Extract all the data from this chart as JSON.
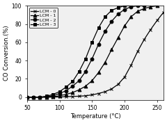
{
  "title": "",
  "xlabel": "Temperature (°C)",
  "ylabel": "CO Conversion.(%)",
  "xlim": [
    50,
    260
  ],
  "ylim": [
    -3,
    100
  ],
  "yticks": [
    0,
    20,
    40,
    60,
    80,
    100
  ],
  "xticks": [
    50,
    100,
    150,
    200,
    250
  ],
  "series": [
    {
      "label": "LCM - 0",
      "marker": "x",
      "color": "black",
      "x": [
        50,
        60,
        70,
        80,
        90,
        100,
        110,
        120,
        130,
        140,
        150,
        160,
        170,
        180,
        190,
        200,
        210,
        220,
        230,
        240,
        250,
        260
      ],
      "y": [
        0,
        0,
        0,
        0,
        0,
        0.3,
        0.5,
        0.8,
        1,
        1.5,
        2.5,
        4,
        6,
        9,
        14,
        22,
        35,
        50,
        63,
        74,
        84,
        93
      ]
    },
    {
      "label": "LCM - 1",
      "marker": "^",
      "color": "black",
      "x": [
        50,
        60,
        70,
        80,
        90,
        100,
        110,
        120,
        130,
        140,
        150,
        160,
        170,
        180,
        190,
        200,
        210,
        220,
        230,
        240,
        250
      ],
      "y": [
        0,
        0,
        0,
        0,
        0.5,
        1.5,
        3,
        5,
        8,
        12,
        18,
        27,
        38,
        52,
        65,
        78,
        88,
        94,
        97,
        99,
        100
      ]
    },
    {
      "label": "LCM - 2",
      "marker": "o",
      "color": "black",
      "x": [
        50,
        60,
        70,
        80,
        90,
        100,
        110,
        120,
        130,
        140,
        150,
        160,
        170,
        180,
        190,
        200,
        210,
        220,
        230
      ],
      "y": [
        0,
        0,
        0,
        0.5,
        1.5,
        4,
        7,
        12,
        18,
        28,
        42,
        58,
        72,
        83,
        91,
        96,
        99,
        100,
        100
      ]
    },
    {
      "label": "LCM - 3",
      "marker": "s",
      "color": "black",
      "x": [
        50,
        60,
        70,
        80,
        90,
        100,
        110,
        120,
        130,
        140,
        150,
        160,
        170,
        180,
        190,
        200,
        210
      ],
      "y": [
        0,
        0,
        0,
        1,
        3,
        6,
        11,
        17,
        28,
        42,
        60,
        76,
        88,
        95,
        98,
        100,
        100
      ]
    }
  ],
  "legend_loc": "upper left",
  "background_color": "#f0f0f0",
  "markersize": 3.5,
  "linewidth": 0.9
}
